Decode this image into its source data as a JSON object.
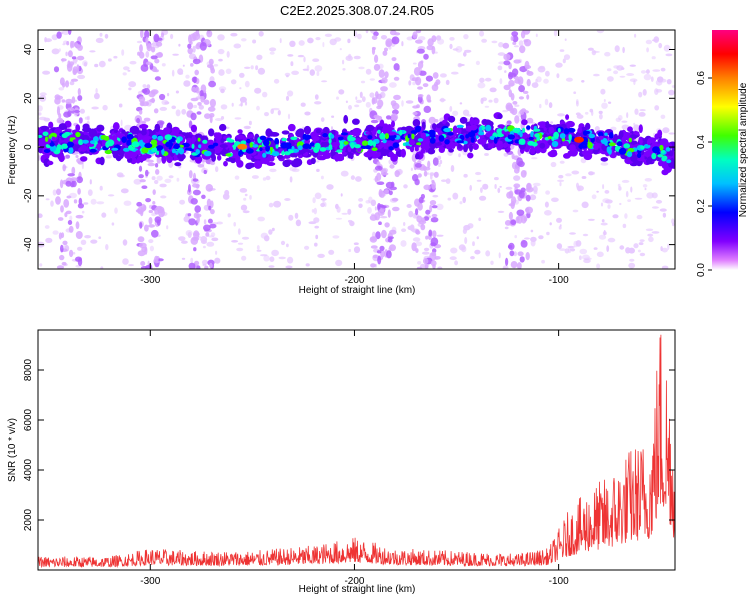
{
  "title": "C2E2.2025.308.07.24.R05",
  "chart_data": [
    {
      "type": "heatmap",
      "xlabel": "Height of straight line (km)",
      "ylabel": "Frequency (Hz)",
      "xlim": [
        -355,
        -43
      ],
      "ylim": [
        -50,
        48
      ],
      "x_ticks": [
        -300,
        -200,
        -100
      ],
      "x_tick_labels": [
        "-300",
        "-200",
        "-100"
      ],
      "y_ticks": [
        -40,
        -20,
        0,
        20,
        40
      ],
      "y_tick_labels": [
        "-40",
        "-20",
        "0",
        "20",
        "40"
      ],
      "colorbar": {
        "label": "Normalized spectral amplitude",
        "range": [
          0,
          0.75
        ],
        "ticks": [
          0,
          0.2,
          0.4,
          0.6
        ],
        "tick_labels": [
          "0.0",
          "0.2",
          "0.4",
          "0.6"
        ],
        "colors": [
          "#ffffff",
          "#e080ff",
          "#8000ff",
          "#0000ff",
          "#00c0ff",
          "#00ffc0",
          "#40ff00",
          "#ffff00",
          "#ff8000",
          "#ff0000",
          "#ff0080"
        ]
      },
      "band": {
        "center_hz": [
          [
            -355,
            2
          ],
          [
            -300,
            1
          ],
          [
            -250,
            0
          ],
          [
            -200,
            2
          ],
          [
            -150,
            5
          ],
          [
            -120,
            5
          ],
          [
            -100,
            4
          ],
          [
            -80,
            2
          ],
          [
            -60,
            0
          ],
          [
            -43,
            -4
          ]
        ],
        "half_width_hz": 6,
        "peak_x": [
          -90,
          -255
        ],
        "peak_amplitude": 0.75
      },
      "vertical_streaks_x": [
        -340,
        -300,
        -275,
        -185,
        -165,
        -120
      ],
      "grid": false
    },
    {
      "type": "line",
      "xlabel": "Height of straight line (km)",
      "ylabel": "SNR (10 * v/v)",
      "xlim": [
        -355,
        -43
      ],
      "ylim": [
        0,
        9600
      ],
      "x_ticks": [
        -300,
        -200,
        -100
      ],
      "x_tick_labels": [
        "-300",
        "-200",
        "-100"
      ],
      "y_ticks": [
        2000,
        4000,
        6000,
        8000
      ],
      "y_tick_labels": [
        "2000",
        "4000",
        "6000",
        "8000"
      ],
      "series": [
        {
          "color": "#ee3333",
          "envelope_x": [
            -355,
            -320,
            -300,
            -280,
            -250,
            -220,
            -200,
            -180,
            -150,
            -120,
            -105,
            -95,
            -85,
            -75,
            -65,
            -55,
            -50,
            -45,
            -43
          ],
          "envelope_y": [
            500,
            500,
            800,
            700,
            700,
            900,
            1200,
            800,
            700,
            600,
            800,
            2200,
            3000,
            3500,
            4500,
            5000,
            9600,
            7000,
            4000
          ]
        }
      ],
      "grid": false
    }
  ]
}
